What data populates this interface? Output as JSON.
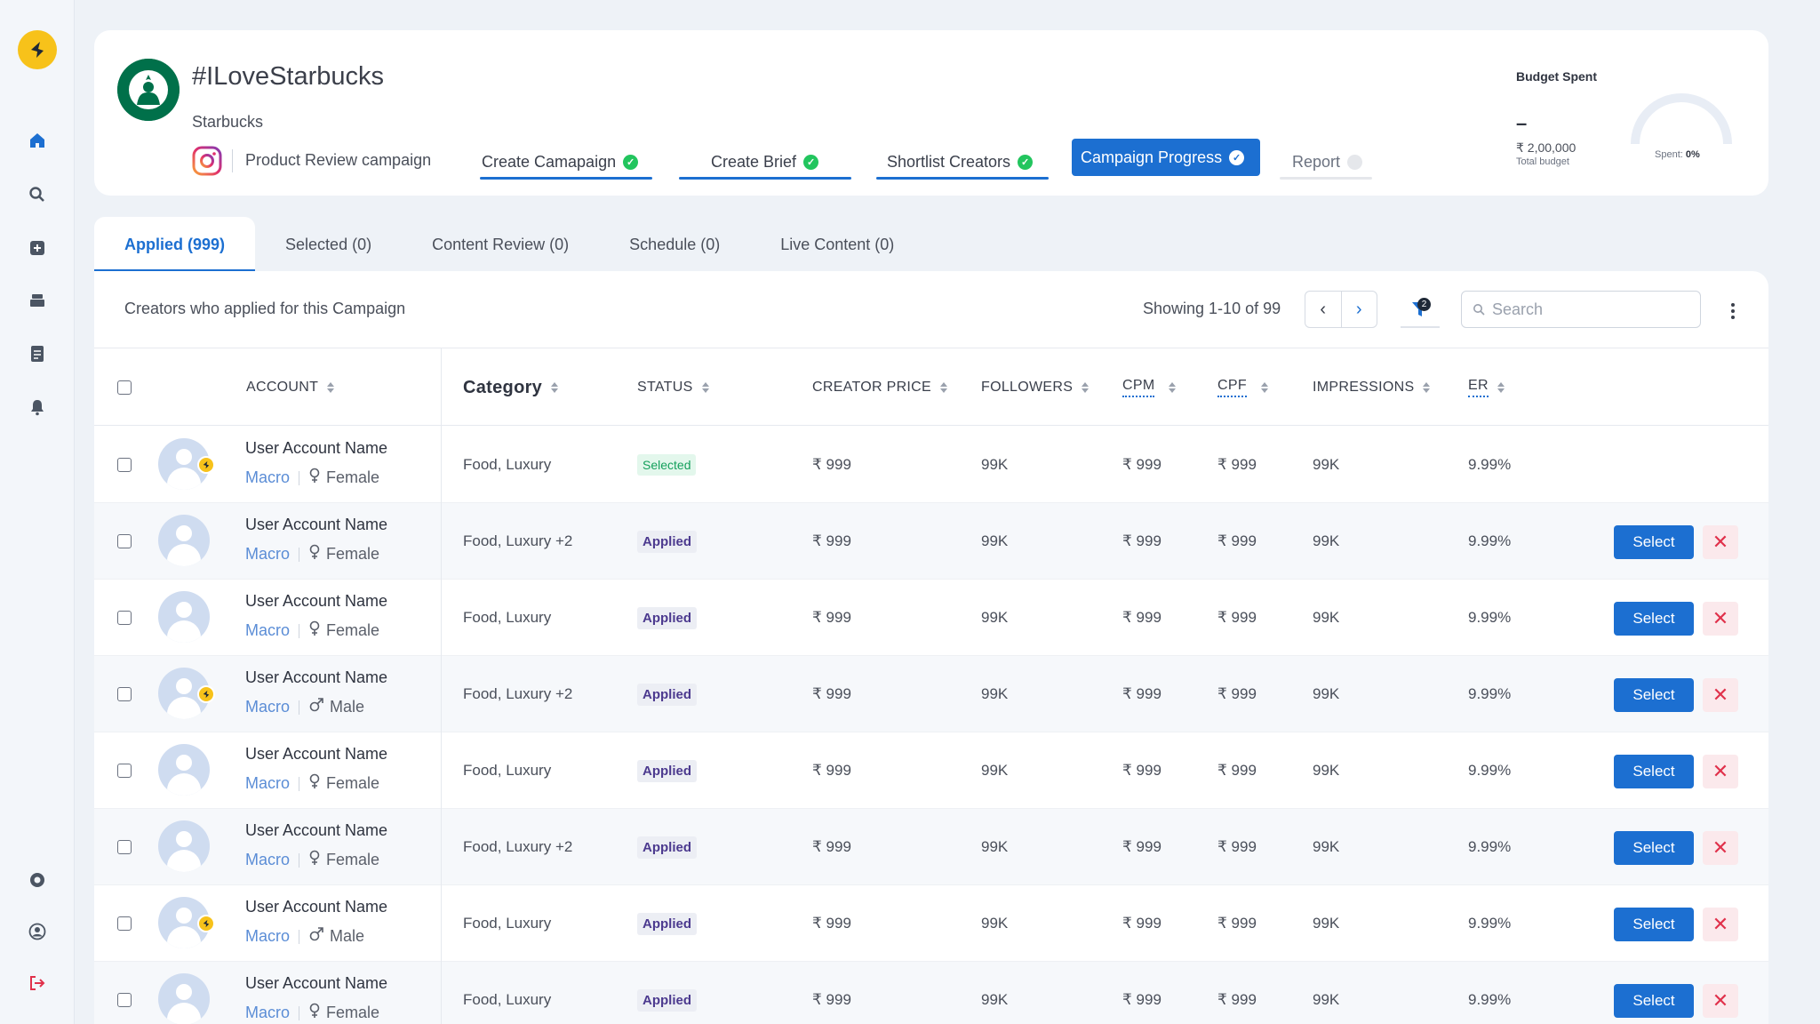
{
  "colors": {
    "primary": "#1c6fd1",
    "success": "#22c55e",
    "brand_yellow": "#f7c21a",
    "reject": "#e0314b"
  },
  "sidebar": {
    "items": [
      {
        "icon": "home-icon"
      },
      {
        "icon": "search-icon"
      },
      {
        "icon": "add-square-icon"
      },
      {
        "icon": "inbox-icon"
      },
      {
        "icon": "document-icon"
      },
      {
        "icon": "bell-icon"
      },
      {
        "icon": "support-icon"
      },
      {
        "icon": "profile-icon"
      },
      {
        "icon": "logout-icon"
      }
    ]
  },
  "campaign": {
    "title": "#ILoveStarbucks",
    "brand": "Starbucks",
    "type": "Product Review campaign",
    "steps": [
      {
        "label": "Create Camapaign",
        "state": "done"
      },
      {
        "label": "Create Brief",
        "state": "done"
      },
      {
        "label": "Shortlist Creators",
        "state": "done"
      },
      {
        "label": "Campaign Progress",
        "state": "active"
      },
      {
        "label": "Report",
        "state": "pending"
      }
    ],
    "budget": {
      "label": "Budget Spent",
      "value": "–",
      "amount": "₹ 2,00,000",
      "total_label": "Total budget",
      "spent_label": "Spent:",
      "spent_value": "0%"
    }
  },
  "tabs": [
    {
      "label": "Applied (999)"
    },
    {
      "label": "Selected (0)"
    },
    {
      "label": "Content Review (0)"
    },
    {
      "label": "Schedule (0)"
    },
    {
      "label": "Live Content (0)"
    }
  ],
  "table": {
    "title": "Creators who applied for this Campaign",
    "showing": "Showing 1-10 of 99",
    "filter_count": "2",
    "search_placeholder": "Search",
    "columns": {
      "account": "ACCOUNT",
      "category": "Category",
      "status": "STATUS",
      "price": "CREATOR PRICE",
      "followers": "FOLLOWERS",
      "cpm": "CPM",
      "cpf": "CPF",
      "impressions": "IMPRESSIONS",
      "er": "ER"
    },
    "select_label": "Select",
    "reject_label": "✕",
    "rows": [
      {
        "name": "User Account Name",
        "tier": "Macro",
        "gender": "Female",
        "badge": true,
        "category": "Food, Luxury",
        "status": "Selected",
        "price": "₹ 999",
        "followers": "99K",
        "cpm": "₹ 999",
        "cpf": "₹ 999",
        "impressions": "99K",
        "er": "9.99%",
        "actions": false
      },
      {
        "name": "User Account Name",
        "tier": "Macro",
        "gender": "Female",
        "badge": false,
        "category": "Food, Luxury +2",
        "status": "Applied",
        "price": "₹ 999",
        "followers": "99K",
        "cpm": "₹ 999",
        "cpf": "₹ 999",
        "impressions": "99K",
        "er": "9.99%",
        "actions": true
      },
      {
        "name": "User Account Name",
        "tier": "Macro",
        "gender": "Female",
        "badge": false,
        "category": "Food, Luxury",
        "status": "Applied",
        "price": "₹ 999",
        "followers": "99K",
        "cpm": "₹ 999",
        "cpf": "₹ 999",
        "impressions": "99K",
        "er": "9.99%",
        "actions": true
      },
      {
        "name": "User Account Name",
        "tier": "Macro",
        "gender": "Male",
        "badge": true,
        "category": "Food, Luxury +2",
        "status": "Applied",
        "price": "₹ 999",
        "followers": "99K",
        "cpm": "₹ 999",
        "cpf": "₹ 999",
        "impressions": "99K",
        "er": "9.99%",
        "actions": true
      },
      {
        "name": "User Account Name",
        "tier": "Macro",
        "gender": "Female",
        "badge": false,
        "category": "Food, Luxury",
        "status": "Applied",
        "price": "₹ 999",
        "followers": "99K",
        "cpm": "₹ 999",
        "cpf": "₹ 999",
        "impressions": "99K",
        "er": "9.99%",
        "actions": true
      },
      {
        "name": "User Account Name",
        "tier": "Macro",
        "gender": "Female",
        "badge": false,
        "category": "Food, Luxury +2",
        "status": "Applied",
        "price": "₹ 999",
        "followers": "99K",
        "cpm": "₹ 999",
        "cpf": "₹ 999",
        "impressions": "99K",
        "er": "9.99%",
        "actions": true
      },
      {
        "name": "User Account Name",
        "tier": "Macro",
        "gender": "Male",
        "badge": true,
        "category": "Food, Luxury",
        "status": "Applied",
        "price": "₹ 999",
        "followers": "99K",
        "cpm": "₹ 999",
        "cpf": "₹ 999",
        "impressions": "99K",
        "er": "9.99%",
        "actions": true
      },
      {
        "name": "User Account Name",
        "tier": "Macro",
        "gender": "Female",
        "badge": false,
        "category": "Food, Luxury",
        "status": "Applied",
        "price": "₹ 999",
        "followers": "99K",
        "cpm": "₹ 999",
        "cpf": "₹ 999",
        "impressions": "99K",
        "er": "9.99%",
        "actions": true
      }
    ]
  }
}
